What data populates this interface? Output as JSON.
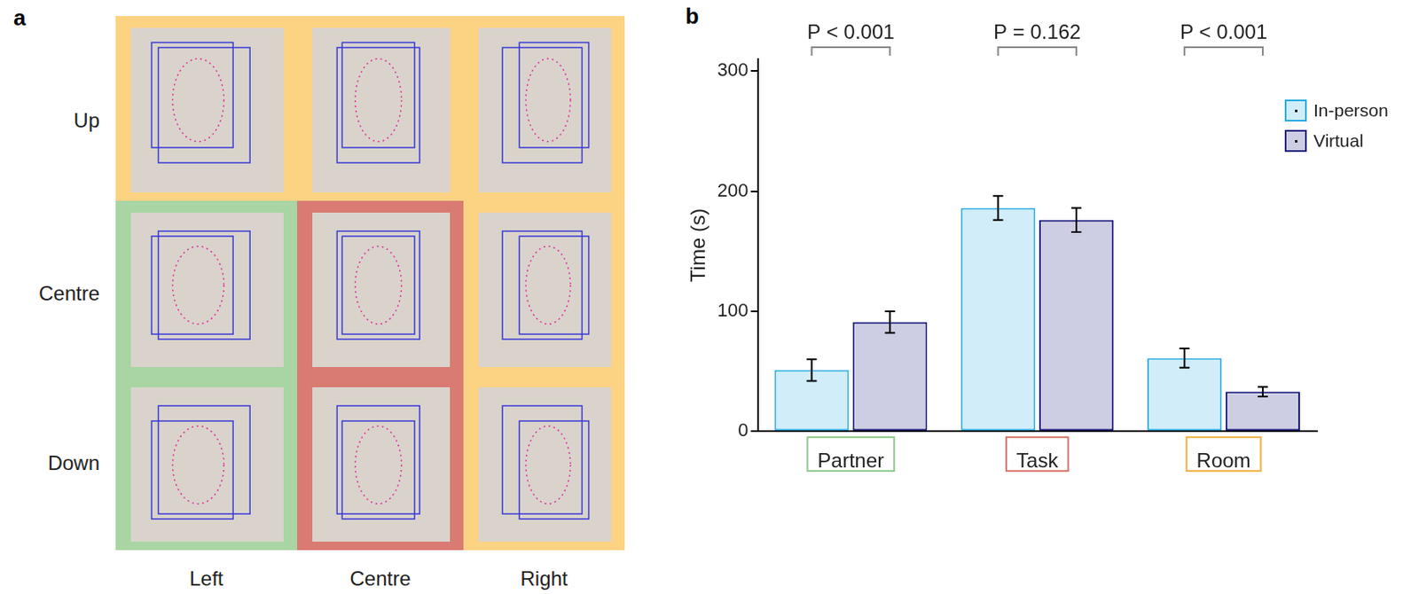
{
  "panel_a": {
    "label": "a",
    "rows": [
      "Up",
      "Centre",
      "Down"
    ],
    "columns": [
      "Left",
      "Centre",
      "Right"
    ]
  },
  "chart_data": {
    "label": "b",
    "type": "bar",
    "y_label": "Time (s)",
    "categories": [
      "Partner",
      "Task",
      "Room"
    ],
    "series": [
      {
        "name": "In-person",
        "color": "#29abe2",
        "values": [
          51,
          186,
          61
        ],
        "errors": [
          9,
          10,
          8
        ]
      },
      {
        "name": "Virtual",
        "color": "#1b1b7e",
        "values": [
          91,
          176,
          33
        ],
        "errors": [
          9,
          10,
          4
        ]
      }
    ],
    "ylim": [
      0,
      310
    ],
    "yticks": [
      0,
      100,
      200,
      300
    ],
    "grid": false,
    "legend": "upper right",
    "annotations": [
      {
        "category": "Partner",
        "text": "P < 0.001"
      },
      {
        "category": "Task",
        "text": "P = 0.162"
      },
      {
        "category": "Room",
        "text": "P < 0.001"
      }
    ]
  }
}
